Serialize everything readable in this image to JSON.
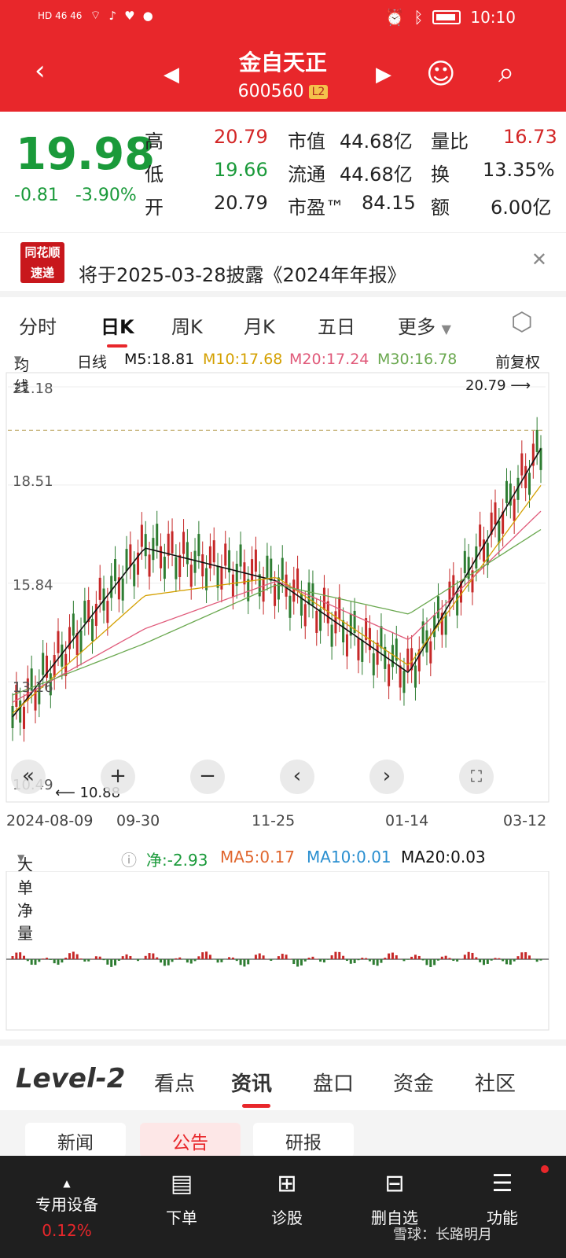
{
  "status": {
    "left": "HD 46 46",
    "time": "10:10"
  },
  "header": {
    "title": "金自天正",
    "code": "600560",
    "level": "L2"
  },
  "quote": {
    "price": "19.98",
    "change": "-0.81",
    "change_pct": "-3.90%",
    "rows": [
      {
        "l1": "高",
        "v1": "20.79",
        "l2": "市值",
        "v2": "44.68亿",
        "l3": "量比",
        "v3": "16.73"
      },
      {
        "l1": "低",
        "v1": "19.66",
        "l2": "流通",
        "v2": "44.68亿",
        "l3": "换",
        "v3": "13.35%"
      },
      {
        "l1": "开",
        "v1": "20.79",
        "l2": "市盈™",
        "v2": "84.15",
        "l3": "额",
        "v3": "6.00亿"
      }
    ]
  },
  "notice": {
    "badge_top": "同花顺",
    "badge_bottom": "速递",
    "text": "将于2025-03-28披露《2024年年报》"
  },
  "tabs": [
    "分时",
    "日K",
    "周K",
    "月K",
    "五日",
    "更多"
  ],
  "ma": {
    "type": "均线",
    "period": "日线",
    "m5": "M5:18.81",
    "m10": "M10:17.68",
    "m20": "M20:17.24",
    "m30": "M30:16.78",
    "adj": "前复权"
  },
  "chart": {
    "ticks": [
      "21.18",
      "18.51",
      "15.84",
      "13.16",
      "10.49"
    ],
    "dates": [
      "2024-08-09",
      "09-30",
      "11-25",
      "01-14",
      "03-12"
    ],
    "high_label": "20.79",
    "low_label": "10.88"
  },
  "chart_data": {
    "type": "line",
    "y_range": [
      10.49,
      21.18
    ],
    "x": [
      "2024-08-09",
      "09-30",
      "11-25",
      "01-14",
      "03-12"
    ],
    "series": [
      {
        "name": "M5",
        "values": [
          12.2,
          16.8,
          15.9,
          13.4,
          19.5
        ]
      },
      {
        "name": "M10",
        "values": [
          12.3,
          15.5,
          16.0,
          13.6,
          18.5
        ]
      },
      {
        "name": "M20",
        "values": [
          12.6,
          14.6,
          15.9,
          14.3,
          17.8
        ]
      },
      {
        "name": "M30",
        "values": [
          12.8,
          14.2,
          15.8,
          15.0,
          17.3
        ]
      }
    ]
  },
  "indicator": {
    "name": "大单净量",
    "net": "净:-2.93",
    "ma5": "MA5:0.17",
    "ma10": "MA10:0.01",
    "ma20": "MA20:0.03"
  },
  "section": {
    "brand": "Level-2",
    "tabs": [
      "看点",
      "资讯",
      "盘口",
      "资金",
      "社区"
    ]
  },
  "subtabs": [
    "新闻",
    "公告",
    "研报"
  ],
  "bottom_nav": [
    {
      "label": "专用设备",
      "sub": "0.12%"
    },
    {
      "label": "下单"
    },
    {
      "label": "诊股"
    },
    {
      "label": "删自选"
    },
    {
      "label": "功能"
    }
  ],
  "watermark": "雪球：长路明月",
  "colors": {
    "red": "#e8272b",
    "green": "#1a9a3a",
    "m5": "#111111",
    "m10": "#d4a000",
    "m20": "#e05a7a",
    "m30": "#6aa84f"
  }
}
